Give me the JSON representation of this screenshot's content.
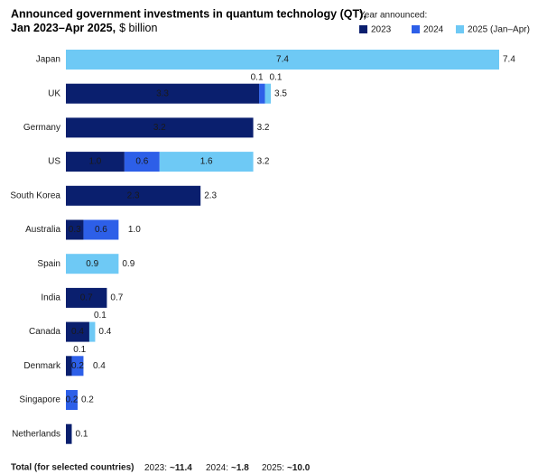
{
  "chart_data": {
    "type": "stacked-bar-horizontal",
    "title_lines": [
      "Announced government investments in quantum technology (QT),",
      "Jan 2023–Apr 2025,"
    ],
    "subtitle": "$ billion",
    "legend_title": "Year announced:",
    "categories": [
      "Japan",
      "UK",
      "Germany",
      "US",
      "South Korea",
      "Australia",
      "Spain",
      "India",
      "Canada",
      "Denmark",
      "Singapore",
      "Netherlands"
    ],
    "series": [
      {
        "name": "2023",
        "color": "#0a1f6e",
        "label_color": "#ffffff",
        "values": [
          null,
          3.3,
          3.2,
          1.0,
          2.3,
          0.3,
          null,
          0.7,
          0.4,
          0.1,
          null,
          0.1
        ],
        "value_labels": [
          null,
          "3.3",
          "3.2",
          "1.0",
          "2.3",
          "0.3",
          null,
          "0.7",
          "0.4",
          "0.1",
          null,
          null
        ]
      },
      {
        "name": "2024",
        "color": "#2d5fe8",
        "label_color": "#ffffff",
        "values": [
          null,
          0.1,
          null,
          0.6,
          null,
          0.6,
          null,
          null,
          null,
          0.2,
          0.2,
          null
        ],
        "value_labels": [
          null,
          "0.1",
          null,
          "0.6",
          null,
          "0.6",
          null,
          null,
          null,
          "0.2",
          "0.2",
          null
        ]
      },
      {
        "name": "2025 (Jan–Apr)",
        "color": "#6ec9f5",
        "label_color": "#0a1f4e",
        "values": [
          7.4,
          0.1,
          null,
          1.6,
          null,
          null,
          0.9,
          null,
          0.1,
          null,
          null,
          null
        ],
        "value_labels": [
          "7.4",
          "0.1",
          null,
          "1.6",
          null,
          null,
          "0.9",
          null,
          "0.1",
          null,
          null,
          null
        ]
      }
    ],
    "totals": [
      7.4,
      3.5,
      3.2,
      3.2,
      2.3,
      1.0,
      0.9,
      0.7,
      0.4,
      0.4,
      0.2,
      0.1
    ],
    "total_labels": [
      "7.4",
      "3.5",
      "3.2",
      "3.2",
      "2.3",
      "1.0",
      "0.9",
      "0.7",
      "0.4",
      "0.4",
      "0.2",
      "0.1"
    ],
    "xlim": [
      0,
      7.4
    ],
    "footer": {
      "label": "Total (for selected countries)",
      "items": [
        {
          "label": "2023:",
          "value": "~11.4"
        },
        {
          "label": "2024:",
          "value": "~1.8"
        },
        {
          "label": "2025:",
          "value": "~10.0"
        }
      ]
    }
  }
}
